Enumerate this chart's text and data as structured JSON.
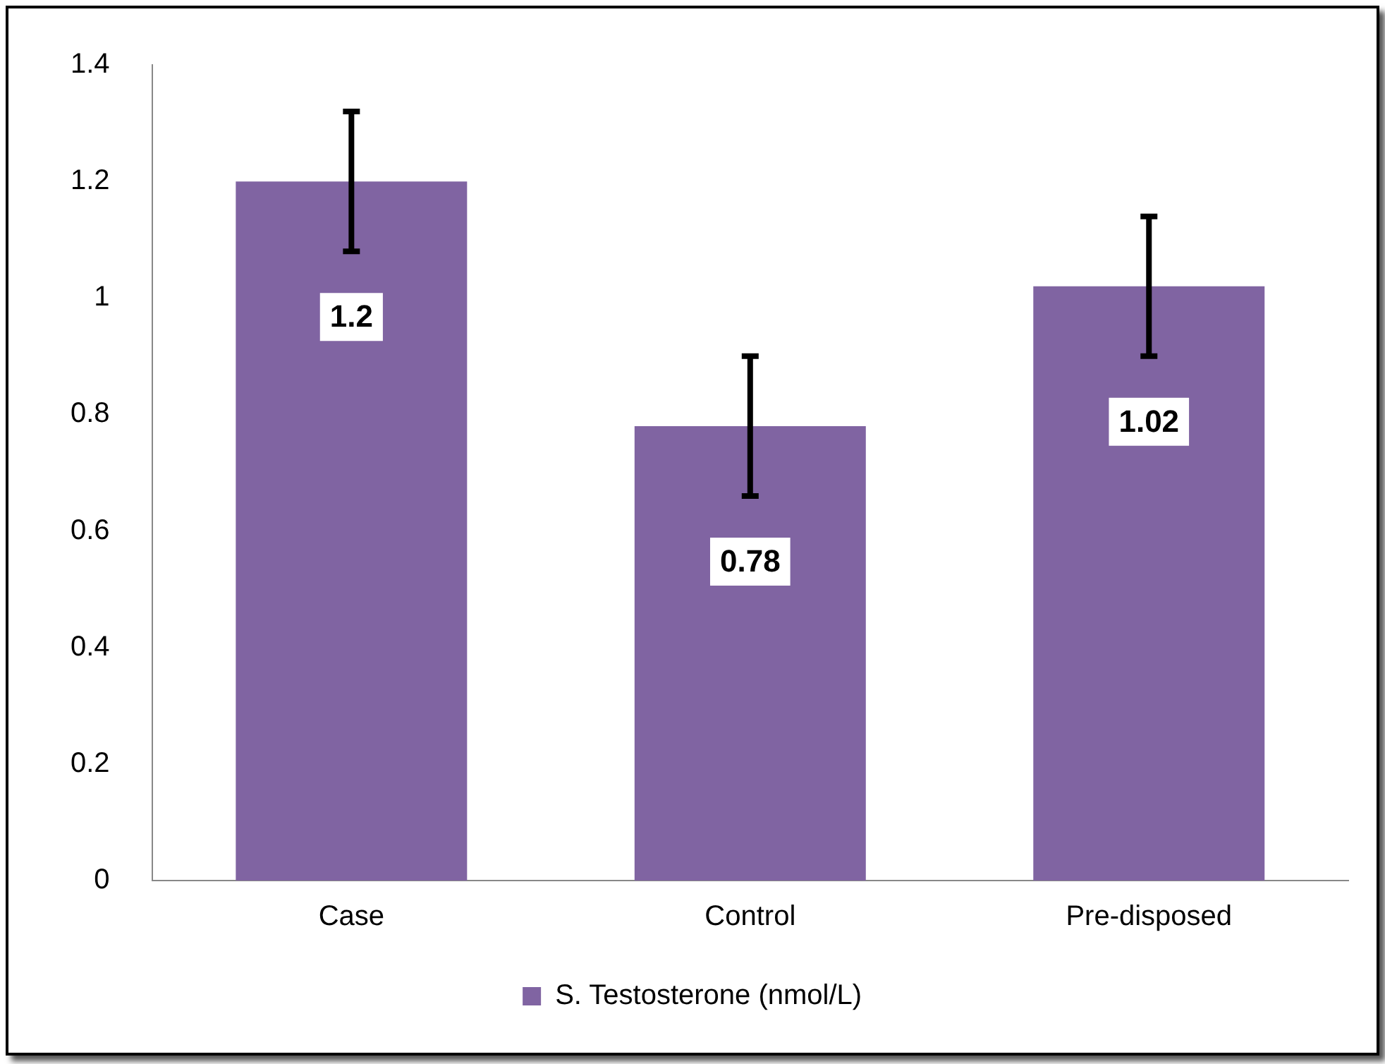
{
  "chart_data": {
    "type": "bar",
    "categories": [
      "Case",
      "Control",
      "Pre-disposed"
    ],
    "series": [
      {
        "name": "S. Testosterone (nmol/L)",
        "color": "#8064a2",
        "values": [
          1.2,
          0.78,
          1.02
        ],
        "errors": [
          0.12,
          0.12,
          0.12
        ]
      }
    ],
    "ylim": [
      0,
      1.4
    ],
    "yticks": [
      0,
      0.2,
      0.4,
      0.6,
      0.8,
      1,
      1.2,
      1.4
    ],
    "grid": false,
    "legend": "bottom",
    "data_labels": true
  }
}
